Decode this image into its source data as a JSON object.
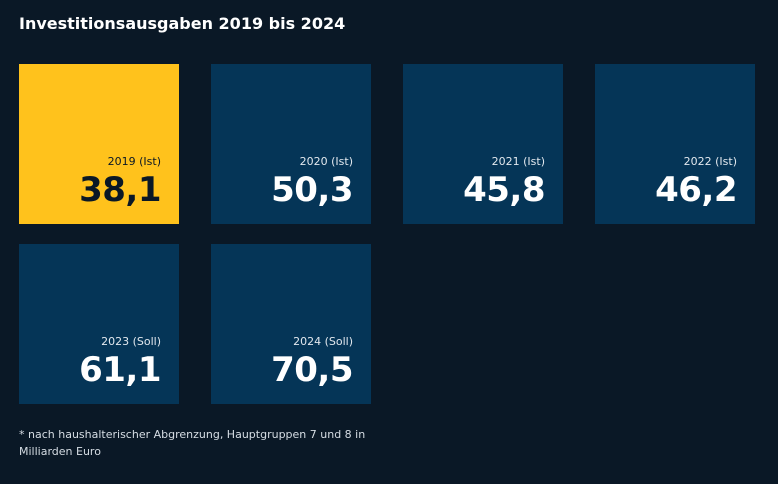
{
  "title": "Investitionsausgaben 2019 bis 2024",
  "footnote": "* nach haushalterischer Abgrenzung, Hauptgruppen 7 und 8 in Milliarden Euro",
  "colors": {
    "background": "#0a1826",
    "tile_default": "#053557",
    "tile_highlight": "#ffc21c",
    "text_on_default_label": "#e2e8ee",
    "text_on_default_value": "#ffffff",
    "text_on_highlight": "#0a1826"
  },
  "chart_data": {
    "type": "table",
    "title": "Investitionsausgaben 2019 bis 2024",
    "categories": [
      "2019 (Ist)",
      "2020 (Ist)",
      "2021 (Ist)",
      "2022 (Ist)",
      "2023 (Soll)",
      "2024 (Soll)"
    ],
    "values": [
      38.1,
      50.3,
      45.8,
      46.2,
      61.1,
      70.5
    ],
    "display_values": [
      "38,1",
      "50,3",
      "45,8",
      "46,2",
      "61,1",
      "70,5"
    ],
    "highlighted": [
      "2019 (Ist)"
    ]
  }
}
